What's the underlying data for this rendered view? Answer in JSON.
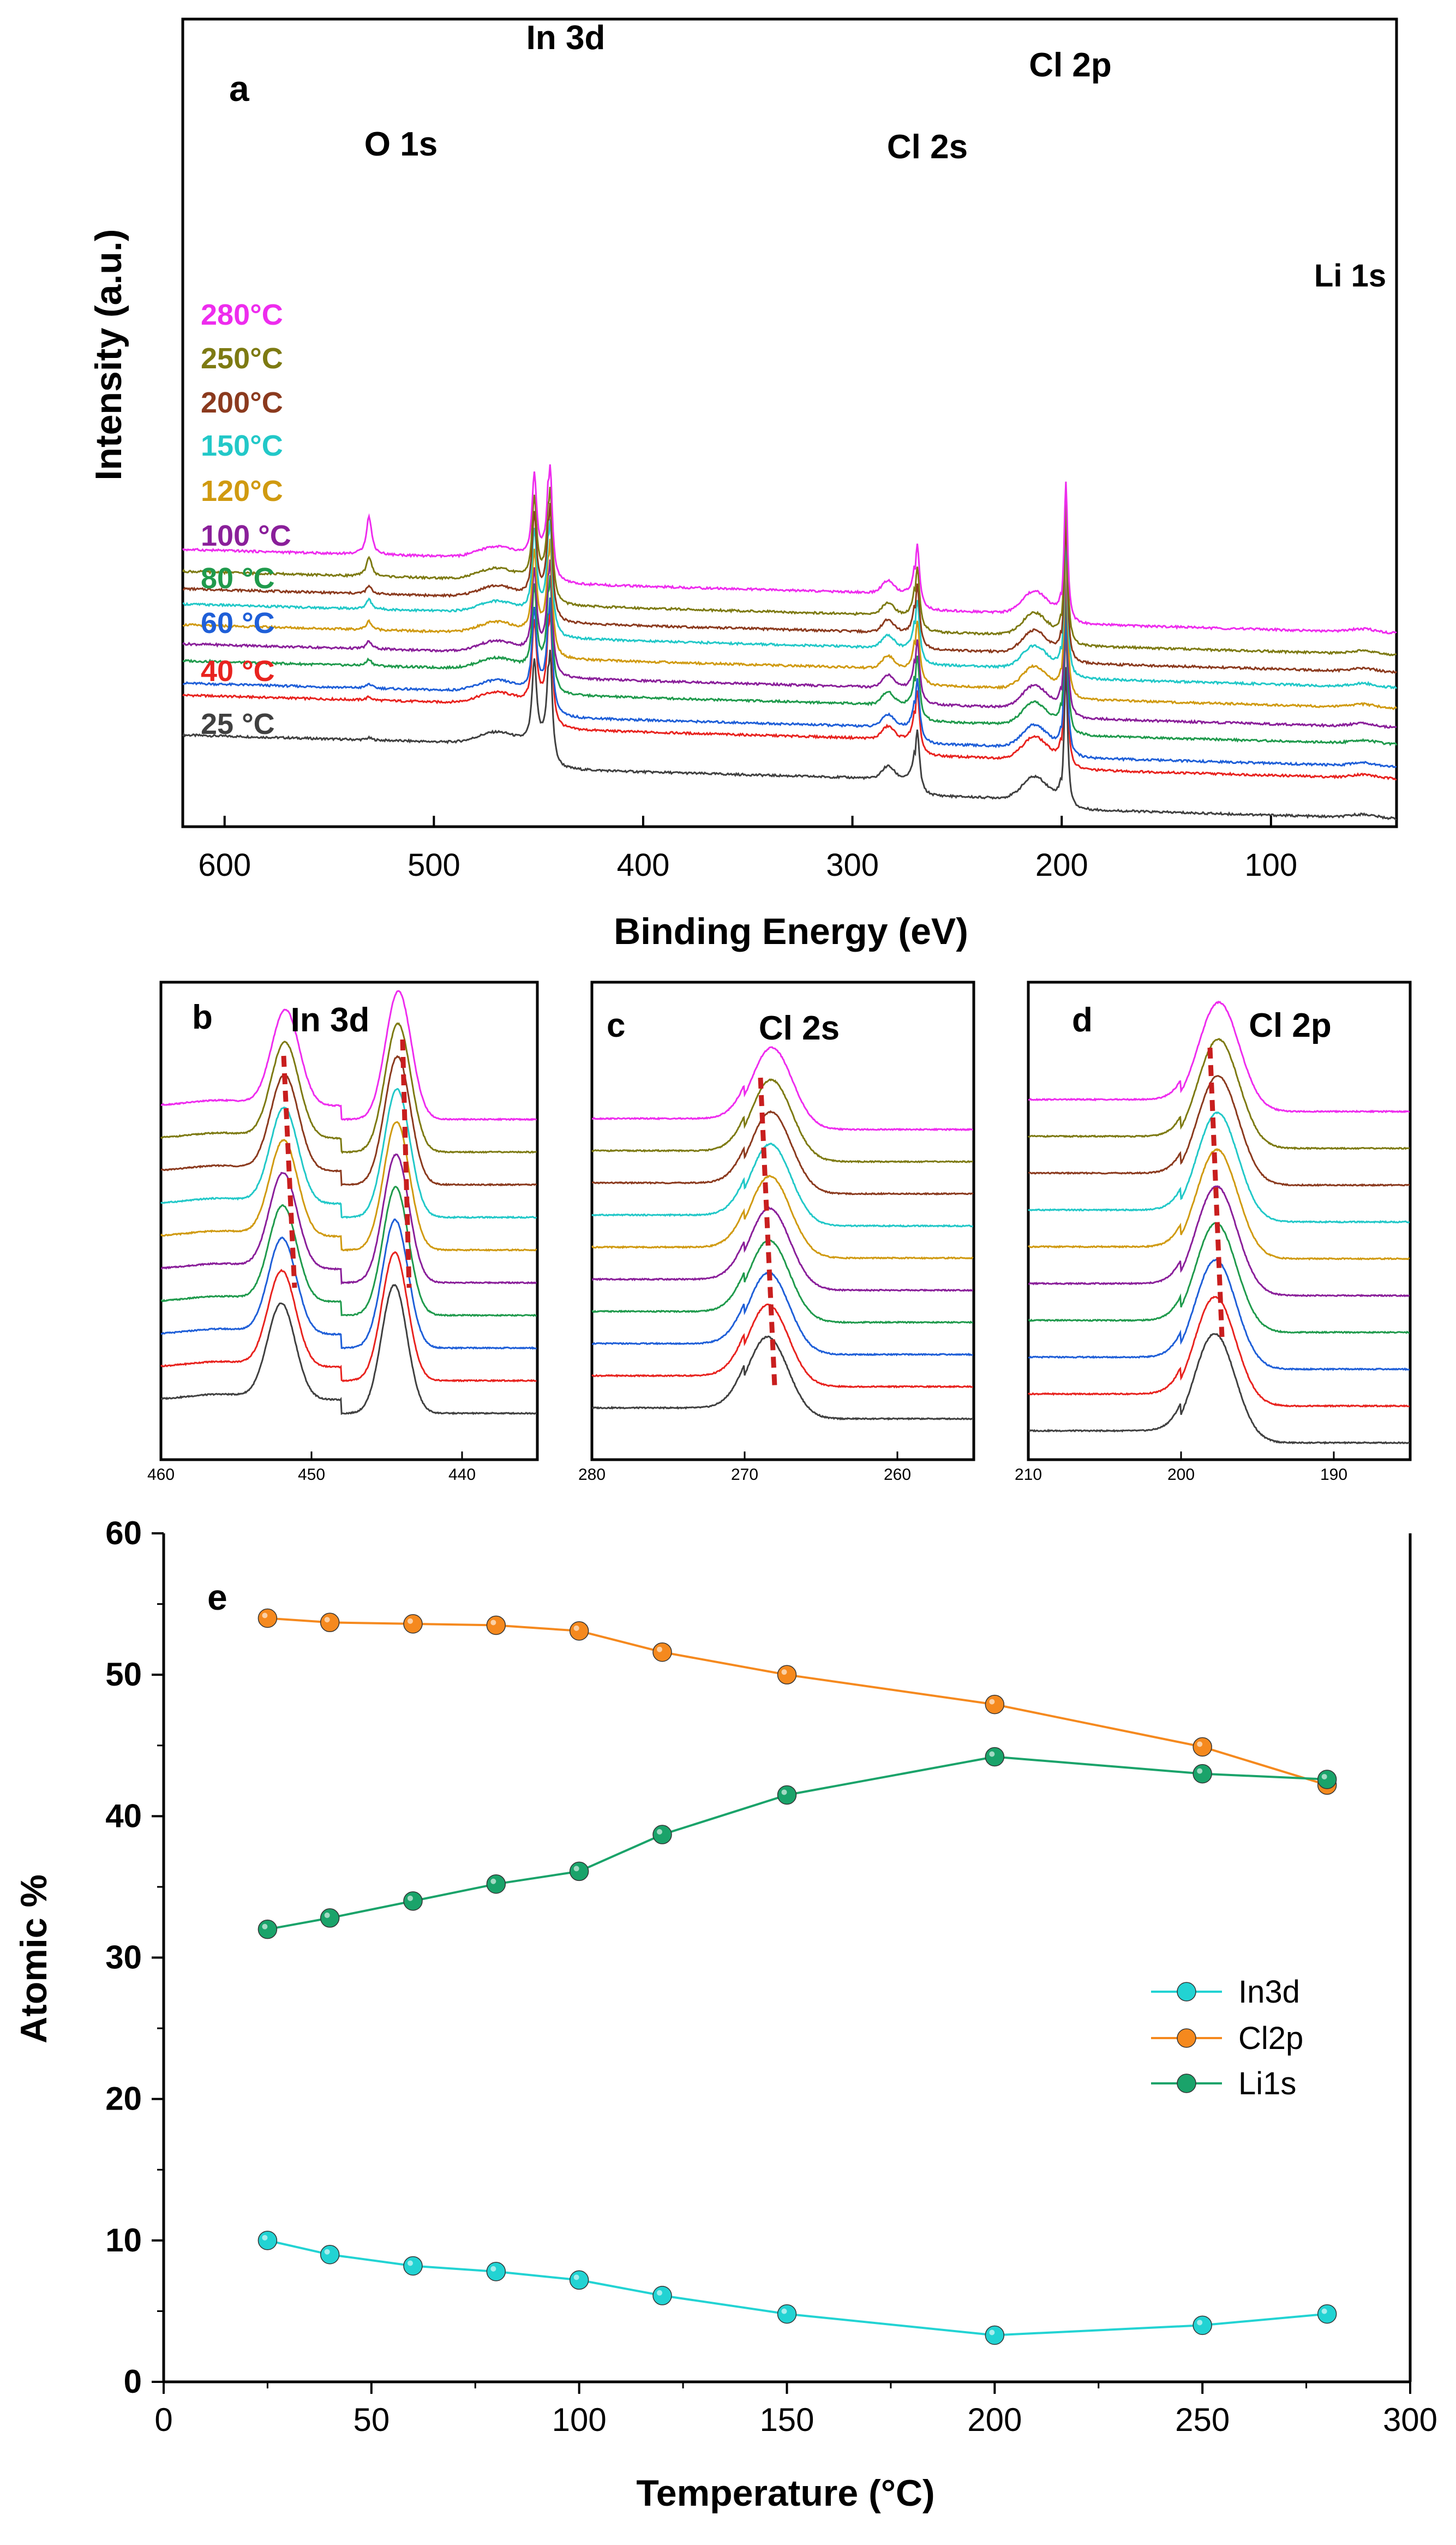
{
  "figure": {
    "panel_a": {
      "label": "a",
      "xlabel": "Binding Energy (eV)",
      "ylabel": "Intensity (a.u.)",
      "x_ticks": [
        "600",
        "500",
        "400",
        "300",
        "200",
        "100"
      ],
      "peak_labels": {
        "o1s": "O 1s",
        "in3d": "In 3d",
        "cl2s": "Cl 2s",
        "cl2p": "Cl 2p",
        "li1s": "Li 1s"
      }
    },
    "panel_b": {
      "label": "b",
      "title": "In 3d",
      "x_ticks": [
        "460",
        "450",
        "440"
      ]
    },
    "panel_c": {
      "label": "c",
      "title": "Cl 2s",
      "x_ticks": [
        "280",
        "270",
        "260"
      ]
    },
    "panel_d": {
      "label": "d",
      "title": "Cl 2p",
      "x_ticks": [
        "210",
        "200",
        "190"
      ]
    },
    "panel_e": {
      "label": "e",
      "xlabel": "Temperature (°C)",
      "ylabel": "Atomic %",
      "x_ticks": [
        "0",
        "50",
        "100",
        "150",
        "200",
        "250",
        "300"
      ],
      "y_ticks": [
        "0",
        "10",
        "20",
        "30",
        "40",
        "50",
        "60"
      ]
    }
  },
  "spectra_series": [
    {
      "label": "25 °C",
      "color": "#404040"
    },
    {
      "label": "40 °C",
      "color": "#e8231f"
    },
    {
      "label": "60 °C",
      "color": "#1f5fd8"
    },
    {
      "label": "80 °C",
      "color": "#1f9a4c"
    },
    {
      "label": "100 °C",
      "color": "#8a1f9a"
    },
    {
      "label": "120°C",
      "color": "#d09a10"
    },
    {
      "label": "150°C",
      "color": "#22c8c8"
    },
    {
      "label": "200°C",
      "color": "#8b3a1e"
    },
    {
      "label": "250°C",
      "color": "#7d7a12"
    },
    {
      "label": "280°C",
      "color": "#ee2cee"
    }
  ],
  "colors": {
    "in3d": "#22d3d3",
    "cl2p": "#f5891e",
    "li1s": "#1aa36a",
    "dash": "#c81e1e"
  },
  "chart_data": [
    {
      "type": "line",
      "panel": "a",
      "title": "",
      "xlabel": "Binding Energy (eV)",
      "ylabel": "Intensity (a.u.)",
      "xlim": [
        620,
        40
      ],
      "series_offset_style": "stacked",
      "peaks_eV": {
        "O 1s": 531,
        "In 3d5/2": 444.5,
        "In 3d3/2": 452,
        "Cl 2s": 269,
        "Cl 2p": 198,
        "Li 1s": 56
      }
    },
    {
      "type": "line",
      "panel": "b",
      "title": "In 3d",
      "xlim": [
        460,
        435
      ],
      "peaks_eV": [
        452,
        444.5
      ]
    },
    {
      "type": "line",
      "panel": "c",
      "title": "Cl 2s",
      "xlim": [
        280,
        255
      ],
      "peaks_eV": [
        268.5
      ]
    },
    {
      "type": "line",
      "panel": "d",
      "title": "Cl 2p",
      "xlim": [
        210,
        185
      ],
      "peaks_eV": [
        197.8
      ]
    },
    {
      "type": "line",
      "panel": "e",
      "xlabel": "Temperature (°C)",
      "ylabel": "Atomic %",
      "xlim": [
        0,
        300
      ],
      "ylim": [
        0,
        60
      ],
      "x": [
        25,
        40,
        60,
        80,
        100,
        120,
        150,
        200,
        250,
        280
      ],
      "series": [
        {
          "name": "In3d",
          "values": [
            10.0,
            9.0,
            8.2,
            7.8,
            7.2,
            6.1,
            4.8,
            3.3,
            4.0,
            4.8
          ]
        },
        {
          "name": "Cl2p",
          "values": [
            54.0,
            53.7,
            53.6,
            53.5,
            53.1,
            51.6,
            50.0,
            47.9,
            44.9,
            42.2
          ]
        },
        {
          "name": "Li1s",
          "values": [
            32.0,
            32.8,
            34.0,
            35.2,
            36.1,
            38.7,
            41.5,
            44.2,
            43.0,
            42.6
          ]
        }
      ],
      "legend": "center-right"
    }
  ]
}
